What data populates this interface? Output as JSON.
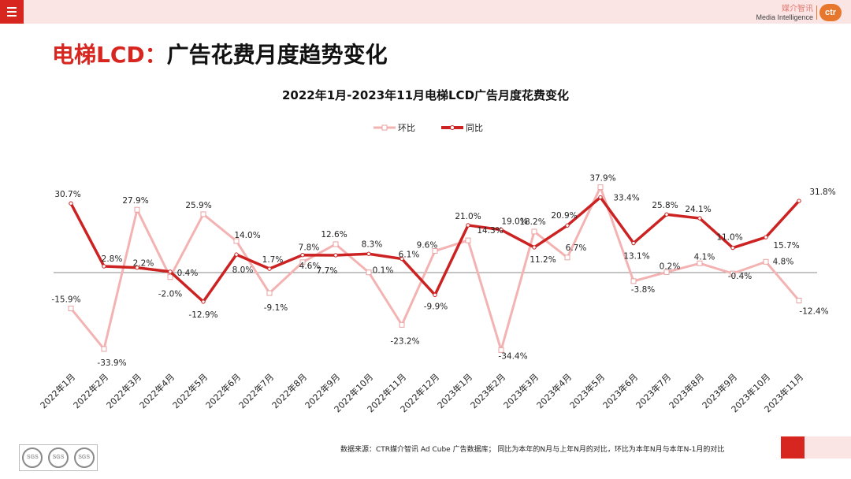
{
  "header": {
    "logo_cn": "媒介智讯",
    "logo_en": "Media Intelligence",
    "logo_badge": "ctr"
  },
  "title": {
    "accent": "电梯LCD：",
    "rest": "广告花费月度趋势变化"
  },
  "footer": {
    "note": "数据来源：CTR媒介智讯 Ad Cube 广告数据库； 同比为本年的N月与上年N月的对比，环比为本年N月与本年N-1月的对比",
    "cert_marks": [
      "SGS",
      "SGS",
      "SGS"
    ]
  },
  "colors": {
    "accent": "#d7261f",
    "yoy": "#cc2222",
    "mom": "#f4b3b3"
  },
  "chart_data": {
    "type": "line",
    "title": "2022年1月-2023年11月电梯LCD广告月度花费变化",
    "legend_position": "top-center",
    "grid": false,
    "ylim": [
      -40,
      45
    ],
    "categories": [
      "2022年1月",
      "2022年2月",
      "2022年3月",
      "2022年4月",
      "2022年5月",
      "2022年6月",
      "2022年7月",
      "2022年8月",
      "2022年9月",
      "2022年10月",
      "2022年11月",
      "2022年12月",
      "2023年1月",
      "2023年2月",
      "2023年3月",
      "2023年4月",
      "2023年5月",
      "2023年6月",
      "2023年7月",
      "2023年8月",
      "2023年9月",
      "2023年10月",
      "2023年11月"
    ],
    "series": [
      {
        "name": "环比",
        "color": "#f4b3b3",
        "marker": "square-outline",
        "values": [
          -15.9,
          -33.9,
          27.9,
          -2.0,
          25.9,
          14.0,
          -9.1,
          4.6,
          12.6,
          0.1,
          -23.2,
          9.6,
          14.3,
          -34.4,
          18.2,
          6.7,
          37.9,
          -3.8,
          0.2,
          4.1,
          -0.4,
          4.8,
          -12.4
        ],
        "labels": [
          "-15.9%",
          "-33.9%",
          "27.9%",
          "-2.0%",
          "25.9%",
          "14.0%",
          "-9.1%",
          "4.6%",
          "12.6%",
          "0.1%",
          "-23.2%",
          "9.6%",
          "14.3%",
          "-34.4%",
          "18.2%",
          "6.7%",
          "37.9%",
          "-3.8%",
          "0.2%",
          "4.1%",
          "-0.4%",
          "4.8%",
          "-12.4%"
        ]
      },
      {
        "name": "同比",
        "color": "#cc2222",
        "marker": "circle",
        "values": [
          30.7,
          2.8,
          2.2,
          0.4,
          -12.9,
          8.0,
          1.7,
          7.8,
          7.7,
          8.3,
          6.1,
          -9.9,
          21.0,
          19.0,
          11.2,
          20.9,
          33.4,
          13.1,
          25.8,
          24.1,
          11.0,
          15.7,
          31.8
        ],
        "labels": [
          "30.7%",
          "2.8%",
          "2.2%",
          "0.4%",
          "-12.9%",
          "8.0%",
          "1.7%",
          "7.8%",
          "7.7%",
          "8.3%",
          "6.1%",
          "-9.9%",
          "21.0%",
          "19.0%",
          "11.2%",
          "20.9%",
          "33.4%",
          "13.1%",
          "25.8%",
          "24.1%",
          "11.0%",
          "15.7%",
          "31.8%"
        ]
      }
    ]
  }
}
